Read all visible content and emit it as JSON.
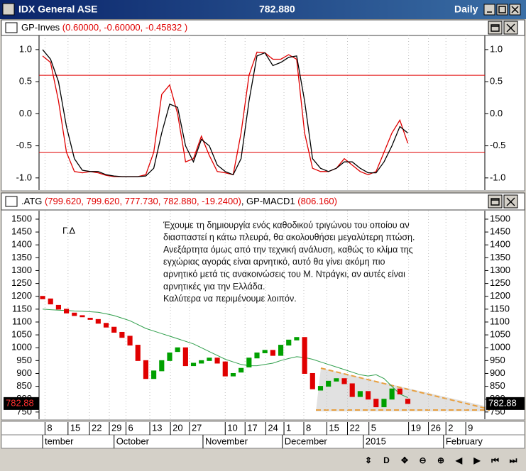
{
  "window": {
    "title": "IDX General ASE",
    "value": "782.880",
    "period": "Daily"
  },
  "chart_data": [
    {
      "type": "line",
      "header": [
        {
          "text": "GP-Inves ",
          "color": "#000000"
        },
        {
          "text": "(0.60000, -0.60000, -0.45832 )",
          "color": "#e00000"
        }
      ],
      "series": [
        {
          "color": "#e00000",
          "values": [
            0.9,
            0.8,
            0.2,
            -0.6,
            -0.9,
            -0.92,
            -0.9,
            -0.92,
            -0.96,
            -0.98,
            -0.98,
            -0.98,
            -0.98,
            -0.95,
            -0.6,
            0.3,
            0.45,
            0.0,
            -0.75,
            -0.7,
            -0.35,
            -0.65,
            -0.9,
            -0.92,
            -0.95,
            -0.3,
            0.6,
            0.96,
            0.95,
            0.85,
            0.85,
            0.92,
            0.85,
            -0.3,
            -0.85,
            -0.9,
            -0.9,
            -0.85,
            -0.7,
            -0.8,
            -0.9,
            -0.95,
            -0.9,
            -0.6,
            -0.3,
            -0.1,
            -0.46
          ]
        },
        {
          "color": "#000000",
          "values": [
            1.0,
            0.85,
            0.5,
            -0.2,
            -0.7,
            -0.88,
            -0.9,
            -0.9,
            -0.95,
            -0.97,
            -0.98,
            -0.98,
            -0.98,
            -0.97,
            -0.85,
            -0.3,
            0.15,
            0.1,
            -0.5,
            -0.75,
            -0.4,
            -0.5,
            -0.8,
            -0.9,
            -0.95,
            -0.7,
            0.2,
            0.9,
            0.95,
            0.75,
            0.8,
            0.88,
            0.9,
            0.2,
            -0.7,
            -0.85,
            -0.9,
            -0.85,
            -0.75,
            -0.75,
            -0.85,
            -0.92,
            -0.92,
            -0.75,
            -0.5,
            -0.2,
            -0.3
          ]
        }
      ],
      "levels": [
        0.6,
        -0.6
      ],
      "level_color": "#e00000",
      "xlim": [
        -0.45,
        55.7
      ],
      "ylim": [
        -1.19,
        1.22
      ],
      "yticks": [
        {
          "value": 1,
          "label": "1.0"
        },
        {
          "value": 0.5,
          "label": "0.5"
        },
        {
          "value": 0,
          "label": "0.0"
        },
        {
          "value": -0.5,
          "label": "-0.5"
        },
        {
          "value": -1,
          "label": "-1.0"
        }
      ]
    },
    {
      "type": "candlestick",
      "header": [
        {
          "text": ".ATG ",
          "color": "#000000"
        },
        {
          "text": "(799.620, 799.620, 777.730, 782.880, -19.2400)",
          "color": "#e00000"
        },
        {
          "text": ", GP-MACD1 ",
          "color": "#000000"
        },
        {
          "text": "(806.160)",
          "color": "#e00000"
        }
      ],
      "open": [
        1200,
        1190,
        1165,
        1150,
        1135,
        1125,
        1115,
        1110,
        1095,
        1080,
        1060,
        1045,
        1010,
        950,
        880,
        910,
        950,
        985,
        1000,
        930,
        940,
        950,
        960,
        945,
        890,
        905,
        925,
        960,
        980,
        990,
        970,
        1010,
        1030,
        1040,
        900,
        835,
        850,
        870,
        880,
        860,
        810,
        830,
        800,
        770,
        800,
        840,
        800
      ],
      "close": [
        1190,
        1170,
        1150,
        1135,
        1125,
        1120,
        1110,
        1095,
        1080,
        1060,
        1040,
        1010,
        950,
        880,
        910,
        950,
        980,
        1000,
        930,
        940,
        950,
        960,
        940,
        890,
        900,
        920,
        960,
        980,
        990,
        970,
        1010,
        1030,
        1040,
        900,
        840,
        850,
        870,
        880,
        860,
        810,
        830,
        800,
        770,
        800,
        840,
        820,
        783
      ],
      "up_color": "#00a000",
      "down_color": "#e00000",
      "series": [
        {
          "color": "#2e9e4a",
          "values": [
            1150,
            1148,
            1146,
            1145,
            1143,
            1142,
            1140,
            1138,
            1132,
            1125,
            1115,
            1105,
            1090,
            1075,
            1065,
            1055,
            1045,
            1035,
            1025,
            1015,
            1000,
            985,
            970,
            955,
            945,
            935,
            930,
            930,
            935,
            940,
            950,
            958,
            965,
            962,
            955,
            945,
            935,
            925,
            915,
            905,
            895,
            890,
            895,
            880,
            850,
            820,
            806.16
          ]
        }
      ],
      "xlim": [
        -0.45,
        55.7
      ],
      "ylim": [
        722,
        1533
      ],
      "yticks": [
        750,
        800,
        850,
        900,
        950,
        1000,
        1050,
        1100,
        1150,
        1200,
        1250,
        1300,
        1350,
        1400,
        1450,
        1500
      ],
      "last_label": "782.88",
      "signature": "Γ.Δ",
      "annotation": [
        "Έχουμε τη δημιουργία ενός καθοδικού τριγώνου του οποίου αν",
        "διασπαστεί η κάτω πλευρά, θα ακολουθήσει μεγαλύτερη πτώση.",
        "Ανεξάρτητα όμως από την τεχνική ανάλυση, καθώς το κλίμα της",
        "εγχώριας αγοράς είναι αρνητικό, αυτό  θα γίνει ακόμη πιο",
        "αρνητικό μετά τις ανακοινώσεις του Μ. Ντράγκι, αν αυτές είναι",
        "αρνητικές για την Ελλάδα.",
        "Καλύτερα να περιμένουμε λοιπόν."
      ],
      "xticks": [
        {
          "value": 0.3,
          "label": "8"
        },
        {
          "value": 3.2,
          "label": "15"
        },
        {
          "value": 5.9,
          "label": "22"
        },
        {
          "value": 8.4,
          "label": "29"
        },
        {
          "value": 10.5,
          "label": "6"
        },
        {
          "value": 13.5,
          "label": "13"
        },
        {
          "value": 16.1,
          "label": "20"
        },
        {
          "value": 18.5,
          "label": "27"
        },
        {
          "value": 23.0,
          "label": "10"
        },
        {
          "value": 25.5,
          "label": "17"
        },
        {
          "value": 28.1,
          "label": "24"
        },
        {
          "value": 30.4,
          "label": "1"
        },
        {
          "value": 32.9,
          "label": "8"
        },
        {
          "value": 35.8,
          "label": "15"
        },
        {
          "value": 38.4,
          "label": "22"
        },
        {
          "value": 41.1,
          "label": "5"
        },
        {
          "value": 46.1,
          "label": "19"
        },
        {
          "value": 48.6,
          "label": "26"
        },
        {
          "value": 50.8,
          "label": "2"
        },
        {
          "value": 53.3,
          "label": "9"
        }
      ],
      "months": [
        {
          "value": 0.0,
          "label": "tember"
        },
        {
          "value": 9.0,
          "label": "October"
        },
        {
          "value": 20.2,
          "label": "November"
        },
        {
          "value": 30.2,
          "label": "December"
        },
        {
          "value": 40.4,
          "label": "2015"
        },
        {
          "value": 50.5,
          "label": "February"
        }
      ]
    }
  ],
  "toolbar": [
    "⇕",
    "D",
    "✥",
    "⊖",
    "⊕",
    "◀",
    "▶",
    "⏮",
    "⏭"
  ]
}
